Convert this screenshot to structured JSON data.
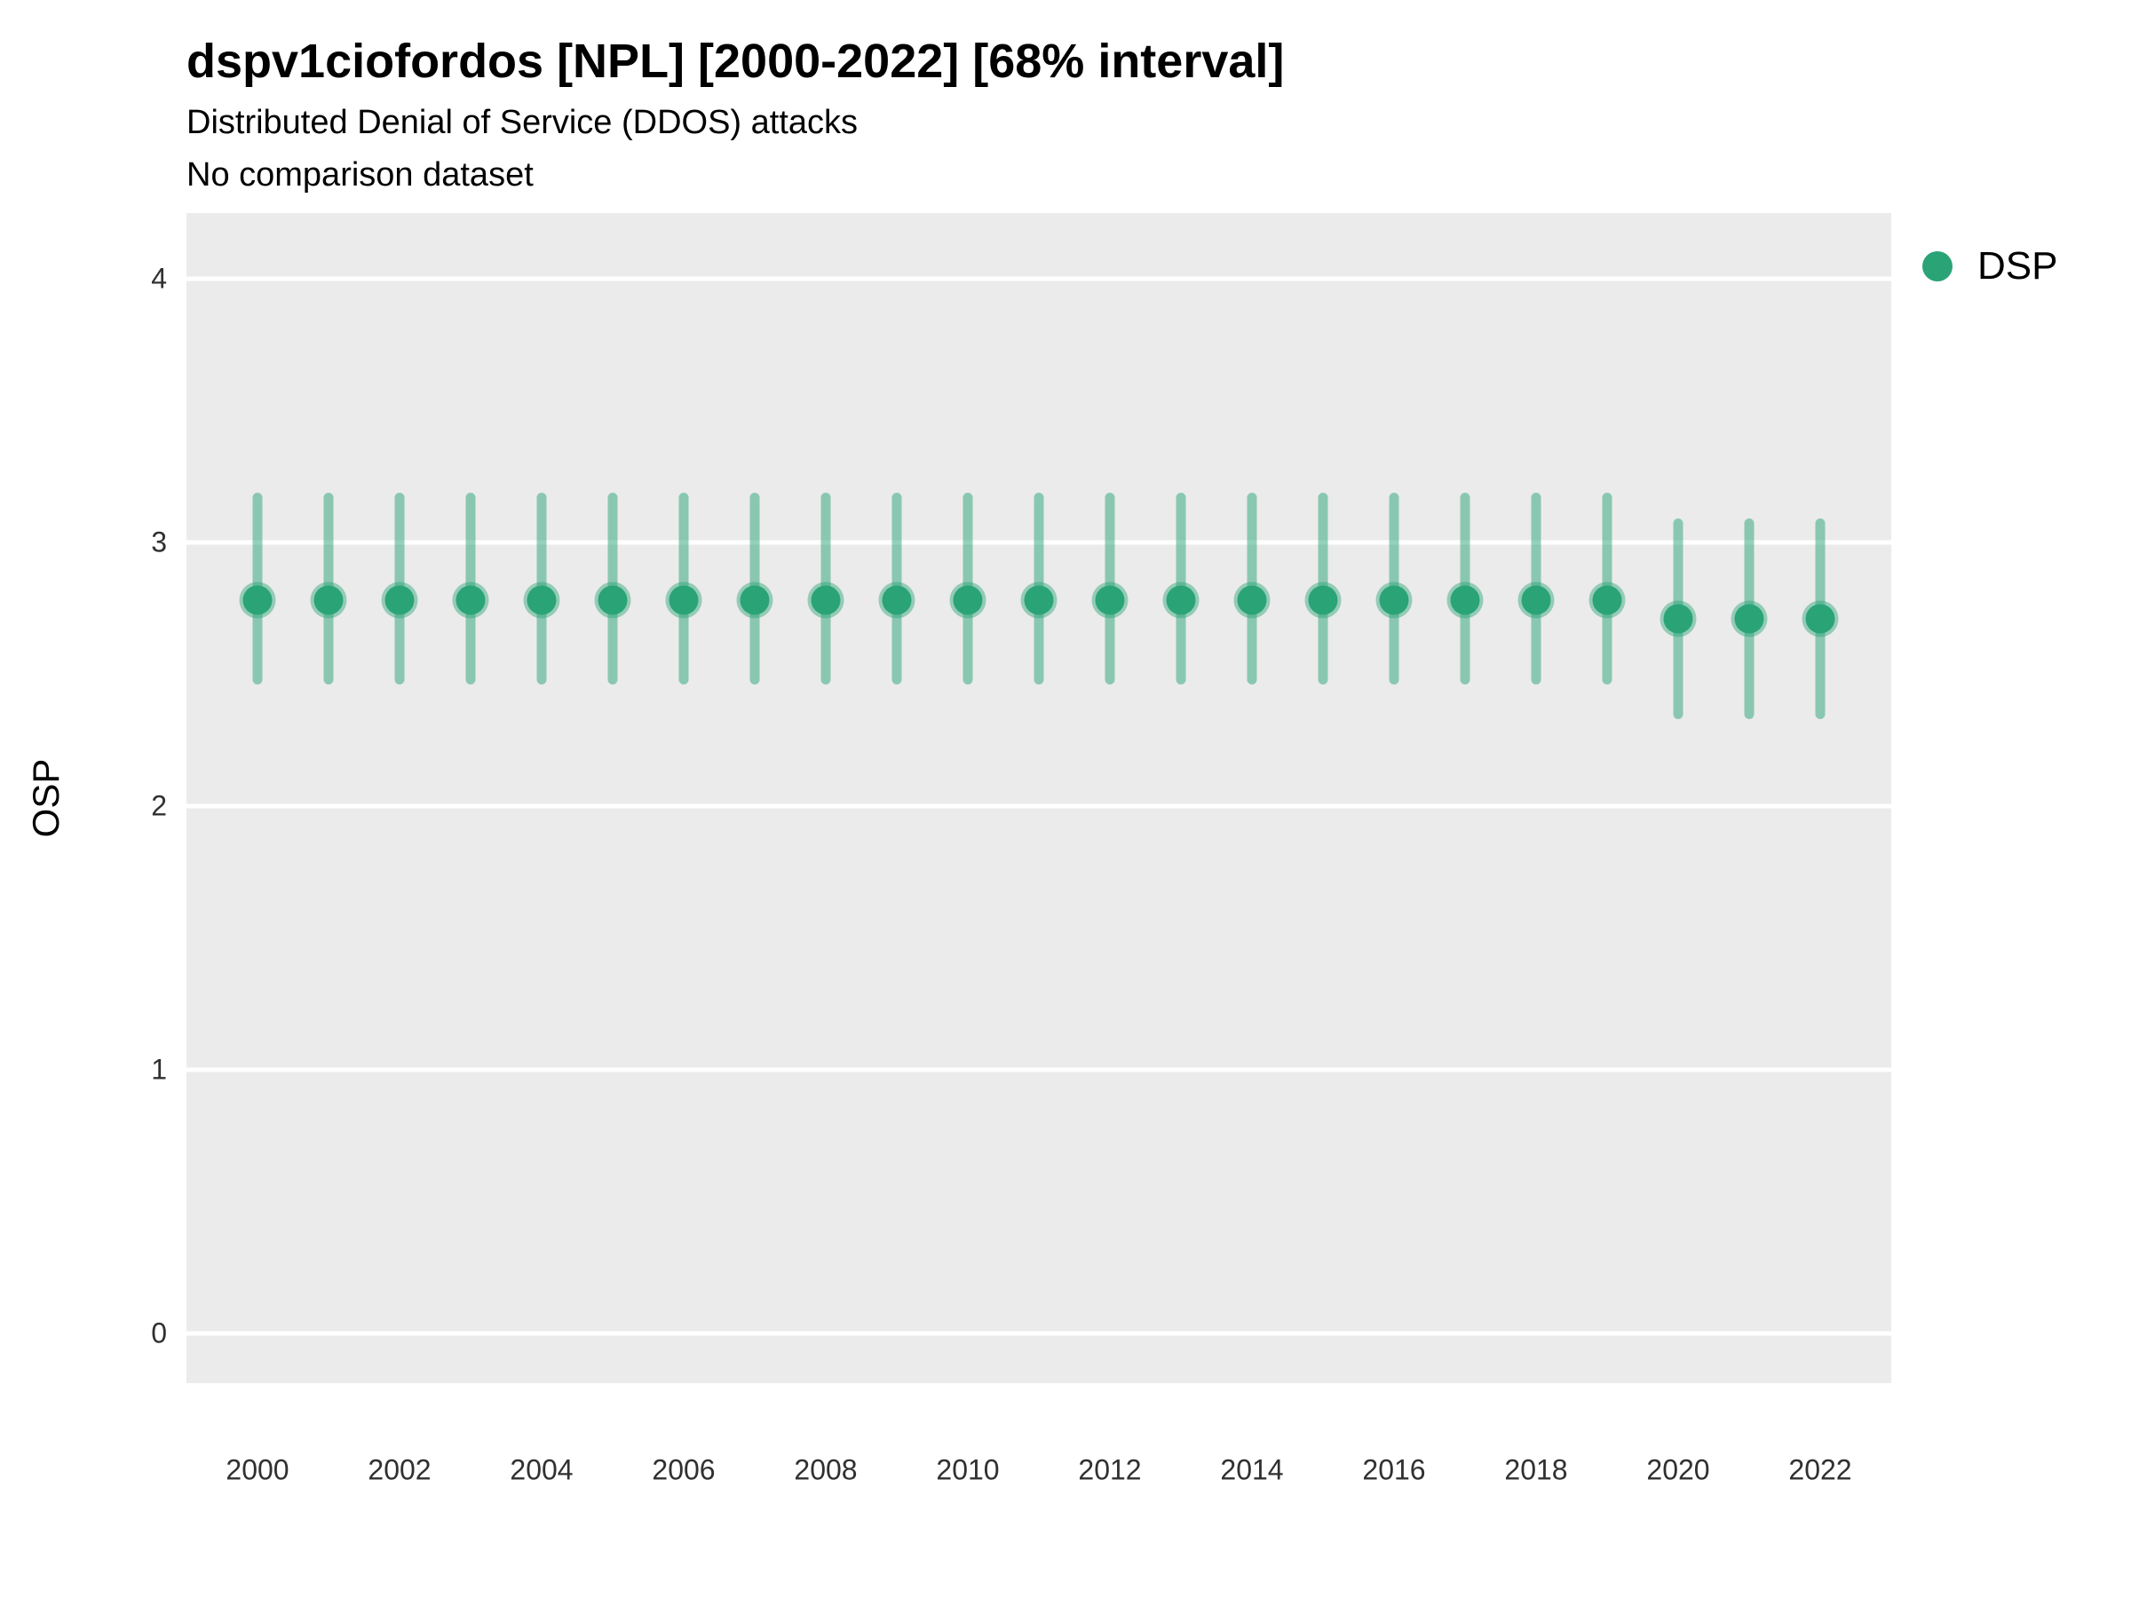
{
  "title": "dspv1ciofordos [NPL] [2000-2022] [68% interval]",
  "subtitle": "Distributed Denial of Service (DDOS) attacks",
  "caption": "No comparison dataset",
  "axes": {
    "y_label": "OSP",
    "y_ticks": [
      0,
      1,
      2,
      3,
      4
    ],
    "x_ticks": [
      2000,
      2002,
      2004,
      2006,
      2008,
      2010,
      2012,
      2014,
      2016,
      2018,
      2020,
      2022
    ]
  },
  "legend": {
    "position": "right-top",
    "items": [
      {
        "label": "DSP",
        "marker": "circle",
        "color": "#2aa377"
      }
    ]
  },
  "colors": {
    "panel_bg": "#ebebeb",
    "gridline": "#ffffff",
    "point": "#2aa377",
    "point_halo": "rgba(42, 163, 119, 0.45)",
    "interval_bar": "rgba(42, 163, 119, 0.5)"
  },
  "chart_data": {
    "type": "scatter",
    "subtype": "pointrange",
    "title": "dspv1ciofordos [NPL] [2000-2022] [68% interval]",
    "xlabel": "",
    "ylabel": "OSP",
    "interval": "68%",
    "grid": "horizontal-only",
    "legend_position": "right-top",
    "xlim": [
      1999,
      2023
    ],
    "ylim": [
      -0.19,
      4.25
    ],
    "x": [
      2000,
      2001,
      2002,
      2003,
      2004,
      2005,
      2006,
      2007,
      2008,
      2009,
      2010,
      2011,
      2012,
      2013,
      2014,
      2015,
      2016,
      2017,
      2018,
      2019,
      2020,
      2021,
      2022
    ],
    "series": [
      {
        "name": "DSP",
        "values": [
          2.78,
          2.78,
          2.78,
          2.78,
          2.78,
          2.78,
          2.78,
          2.78,
          2.78,
          2.78,
          2.78,
          2.78,
          2.78,
          2.78,
          2.78,
          2.78,
          2.78,
          2.78,
          2.78,
          2.78,
          2.71,
          2.71,
          2.71
        ],
        "lo": [
          2.46,
          2.46,
          2.46,
          2.46,
          2.46,
          2.46,
          2.46,
          2.46,
          2.46,
          2.46,
          2.46,
          2.46,
          2.46,
          2.46,
          2.46,
          2.46,
          2.46,
          2.46,
          2.46,
          2.46,
          2.33,
          2.33,
          2.33
        ],
        "hi": [
          3.19,
          3.19,
          3.19,
          3.19,
          3.19,
          3.19,
          3.19,
          3.19,
          3.19,
          3.19,
          3.19,
          3.19,
          3.19,
          3.19,
          3.19,
          3.19,
          3.19,
          3.19,
          3.19,
          3.19,
          3.09,
          3.09,
          3.09
        ]
      }
    ]
  }
}
